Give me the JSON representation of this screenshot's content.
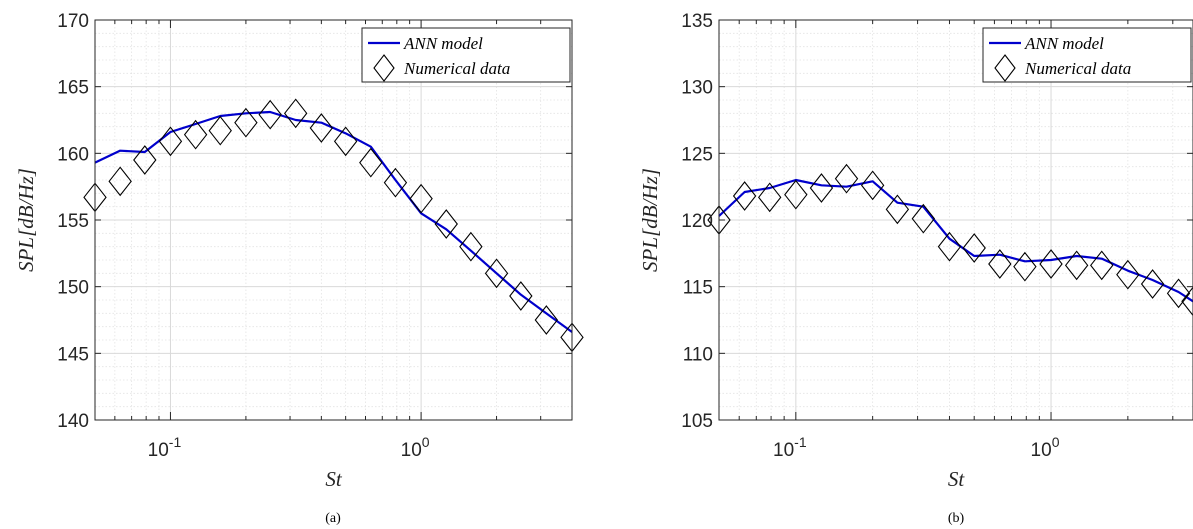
{
  "chart_data": [
    {
      "type": "line",
      "caption": "(a)",
      "xlabel": "St",
      "ylabel": "SPL[dB/Hz]",
      "xscale": "log",
      "xlim": [
        0.05,
        4
      ],
      "ylim": [
        140,
        170
      ],
      "yticks": [
        140,
        145,
        150,
        155,
        160,
        165,
        170
      ],
      "xticks": [
        {
          "value": 0.1,
          "base": "10",
          "exp": "-1"
        },
        {
          "value": 1,
          "base": "10",
          "exp": "0"
        }
      ],
      "grid": true,
      "legend_position": "top-right",
      "series": [
        {
          "name": "ANN model",
          "style": "line",
          "color": "#0000cc",
          "x": [
            0.05,
            0.063,
            0.079,
            0.1,
            0.126,
            0.158,
            0.2,
            0.25,
            0.316,
            0.4,
            0.5,
            0.63,
            0.79,
            1.0,
            1.26,
            1.58,
            2.0,
            2.5,
            3.16,
            4.0
          ],
          "y": [
            159.3,
            160.2,
            160.1,
            161.6,
            162.2,
            162.8,
            163.0,
            163.1,
            162.5,
            162.3,
            161.5,
            160.5,
            158.0,
            155.5,
            154.3,
            152.7,
            151.0,
            149.4,
            148.0,
            146.6
          ]
        },
        {
          "name": "Numerical data",
          "style": "marker",
          "marker": "diamond",
          "color": "#000000",
          "x": [
            0.05,
            0.063,
            0.079,
            0.1,
            0.126,
            0.158,
            0.2,
            0.25,
            0.316,
            0.4,
            0.5,
            0.63,
            0.79,
            1.0,
            1.26,
            1.58,
            2.0,
            2.5,
            3.16,
            4.0
          ],
          "y": [
            156.7,
            157.9,
            159.5,
            160.9,
            161.4,
            161.7,
            162.3,
            162.9,
            163.0,
            161.9,
            160.9,
            159.3,
            157.8,
            156.6,
            154.7,
            153.0,
            151.0,
            149.3,
            147.5,
            146.2
          ]
        }
      ]
    },
    {
      "type": "line",
      "caption": "(b)",
      "xlabel": "St",
      "ylabel": "SPL[dB/Hz]",
      "xscale": "log",
      "xlim": [
        0.05,
        3.6
      ],
      "ylim": [
        105,
        135
      ],
      "yticks": [
        105,
        110,
        115,
        120,
        125,
        130,
        135
      ],
      "xticks": [
        {
          "value": 0.1,
          "base": "10",
          "exp": "-1"
        },
        {
          "value": 1,
          "base": "10",
          "exp": "0"
        }
      ],
      "grid": true,
      "legend_position": "top-right",
      "series": [
        {
          "name": "ANN model",
          "style": "line",
          "color": "#0000cc",
          "x": [
            0.05,
            0.063,
            0.079,
            0.1,
            0.126,
            0.158,
            0.2,
            0.25,
            0.316,
            0.4,
            0.5,
            0.63,
            0.79,
            1.0,
            1.26,
            1.58,
            2.0,
            2.5,
            3.16,
            3.6
          ],
          "y": [
            120.3,
            122.1,
            122.4,
            123.0,
            122.6,
            122.5,
            122.9,
            121.3,
            121.0,
            118.6,
            117.3,
            117.4,
            116.9,
            117.0,
            117.3,
            117.1,
            116.2,
            115.5,
            114.6,
            113.9
          ]
        },
        {
          "name": "Numerical data",
          "style": "marker",
          "marker": "diamond",
          "color": "#000000",
          "x": [
            0.05,
            0.063,
            0.079,
            0.1,
            0.126,
            0.158,
            0.2,
            0.25,
            0.316,
            0.4,
            0.5,
            0.63,
            0.79,
            1.0,
            1.26,
            1.58,
            2.0,
            2.5,
            3.16,
            3.6
          ],
          "y": [
            120.0,
            121.8,
            121.7,
            121.9,
            122.4,
            123.1,
            122.6,
            120.8,
            120.1,
            118.0,
            117.9,
            116.7,
            116.5,
            116.7,
            116.6,
            116.6,
            115.9,
            115.2,
            114.5,
            113.9
          ]
        }
      ]
    }
  ]
}
